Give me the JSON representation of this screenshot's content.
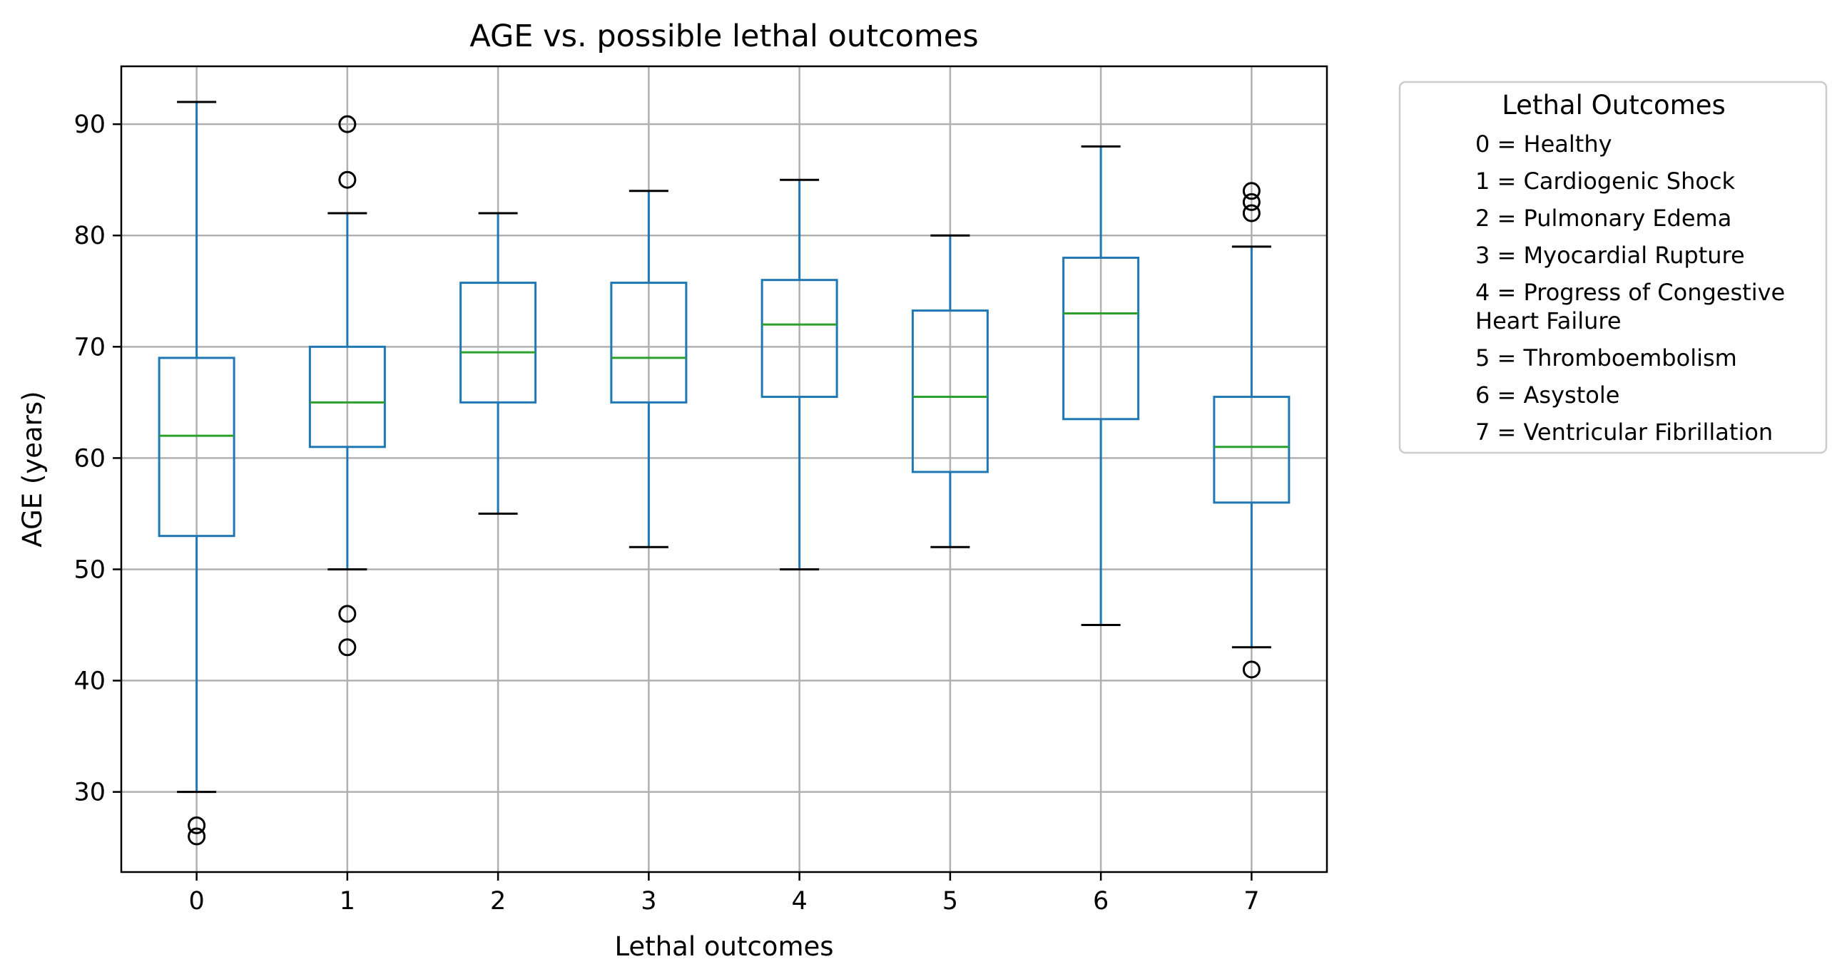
{
  "chart_data": {
    "type": "box",
    "title": "AGE vs. possible lethal outcomes",
    "xlabel": "Lethal outcomes",
    "ylabel": "AGE (years)",
    "ylim": [
      22.8,
      95.2
    ],
    "yticks": [
      30,
      40,
      50,
      60,
      70,
      80,
      90
    ],
    "grid": true,
    "categories": [
      "0",
      "1",
      "2",
      "3",
      "4",
      "5",
      "6",
      "7"
    ],
    "boxes": [
      {
        "category": "0",
        "whisker_low": 30,
        "q1": 53,
        "median": 62,
        "q3": 69,
        "whisker_high": 92,
        "outliers": [
          27,
          26
        ]
      },
      {
        "category": "1",
        "whisker_low": 50,
        "q1": 61,
        "median": 65,
        "q3": 70,
        "whisker_high": 82,
        "outliers": [
          90,
          85,
          46,
          43
        ]
      },
      {
        "category": "2",
        "whisker_low": 55,
        "q1": 65,
        "median": 69.5,
        "q3": 75.75,
        "whisker_high": 82,
        "outliers": []
      },
      {
        "category": "3",
        "whisker_low": 52,
        "q1": 65,
        "median": 69,
        "q3": 75.75,
        "whisker_high": 84,
        "outliers": []
      },
      {
        "category": "4",
        "whisker_low": 50,
        "q1": 65.5,
        "median": 72,
        "q3": 76,
        "whisker_high": 85,
        "outliers": []
      },
      {
        "category": "5",
        "whisker_low": 52,
        "q1": 58.75,
        "median": 65.5,
        "q3": 73.25,
        "whisker_high": 80,
        "outliers": []
      },
      {
        "category": "6",
        "whisker_low": 45,
        "q1": 63.5,
        "median": 73,
        "q3": 78,
        "whisker_high": 88,
        "outliers": []
      },
      {
        "category": "7",
        "whisker_low": 43,
        "q1": 56,
        "median": 61,
        "q3": 65.5,
        "whisker_high": 79,
        "outliers": [
          84,
          83,
          82,
          41
        ]
      }
    ],
    "legend": {
      "title": "Lethal Outcomes",
      "placement": "outside-right-top",
      "entries": [
        [
          "0 = Healthy"
        ],
        [
          "1 = Cardiogenic Shock"
        ],
        [
          "2 = Pulmonary Edema"
        ],
        [
          "3 = Myocardial Rupture"
        ],
        [
          "4 = Progress of Congestive",
          "Heart Failure"
        ],
        [
          "5 = Thromboembolism"
        ],
        [
          "6 = Asystole"
        ],
        [
          "7 = Ventricular Fibrillation"
        ]
      ]
    },
    "colors": {
      "box": "#1f77b4",
      "median": "#2ca02c",
      "whisker_cap": "#000000",
      "outlier": "#000000",
      "grid": "#b0b0b0",
      "frame": "#000000"
    }
  }
}
